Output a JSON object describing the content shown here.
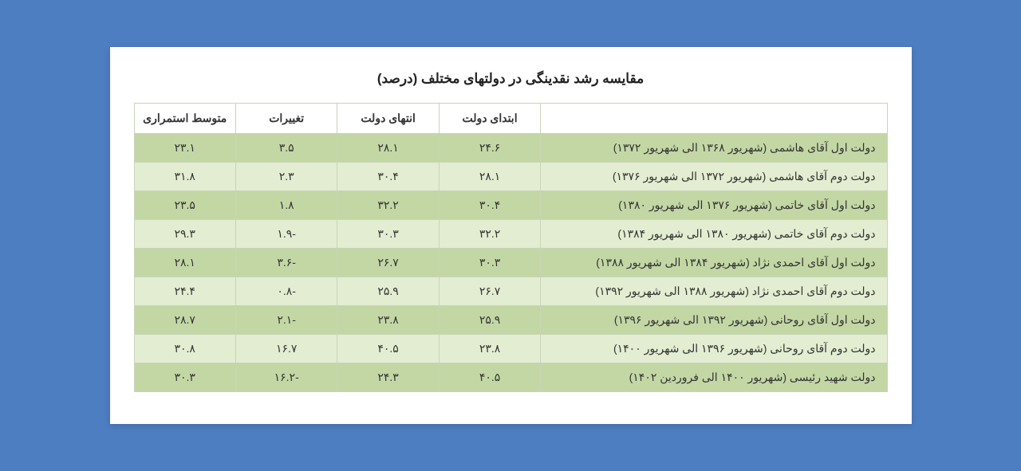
{
  "title": "مقایسه رشد نقدینگی در دولتهای مختلف (درصد)",
  "columns": {
    "government": "",
    "start": "ابتدای دولت",
    "end": "انتهای دولت",
    "changes": "تغییرات",
    "average": "متوسط استمراری"
  },
  "rows": [
    {
      "gov": "دولت اول آقای هاشمی (شهریور ۱۳۶۸ الی شهریور ۱۳۷۲)",
      "start": "۲۴.۶",
      "end": "۲۸.۱",
      "changes": "۳.۵",
      "avg": "۲۳.۱"
    },
    {
      "gov": "دولت دوم آقای هاشمی (شهریور ۱۳۷۲ الی شهریور ۱۳۷۶)",
      "start": "۲۸.۱",
      "end": "۳۰.۴",
      "changes": "۲.۳",
      "avg": "۳۱.۸"
    },
    {
      "gov": "دولت اول آقای خاتمی (شهریور ۱۳۷۶ الی شهریور ۱۳۸۰)",
      "start": "۳۰.۴",
      "end": "۳۲.۲",
      "changes": "۱.۸",
      "avg": "۲۳.۵"
    },
    {
      "gov": "دولت دوم آقای خاتمی (شهریور ۱۳۸۰ الی شهریور ۱۳۸۴)",
      "start": "۳۲.۲",
      "end": "۳۰.۳",
      "changes": "-۱.۹",
      "avg": "۲۹.۳"
    },
    {
      "gov": "دولت اول آقای احمدی نژاد (شهریور ۱۳۸۴ الی شهریور ۱۳۸۸)",
      "start": "۳۰.۳",
      "end": "۲۶.۷",
      "changes": "-۳.۶",
      "avg": "۲۸.۱"
    },
    {
      "gov": "دولت دوم آقای احمدی نژاد (شهریور ۱۳۸۸ الی شهریور ۱۳۹۲)",
      "start": "۲۶.۷",
      "end": "۲۵.۹",
      "changes": "-۰.۸",
      "avg": "۲۴.۴"
    },
    {
      "gov": "دولت اول آقای روحانی (شهریور ۱۳۹۲ الی شهریور ۱۳۹۶)",
      "start": "۲۵.۹",
      "end": "۲۳.۸",
      "changes": "-۲.۱",
      "avg": "۲۸.۷"
    },
    {
      "gov": "دولت دوم آقای روحانی (شهریور ۱۳۹۶ الی شهریور ۱۴۰۰)",
      "start": "۲۳.۸",
      "end": "۴۰.۵",
      "changes": "۱۶.۷",
      "avg": "۳۰.۸"
    },
    {
      "gov": "دولت شهید رئیسی (شهریور ۱۴۰۰ الی فروردین ۱۴۰۲)",
      "start": "۴۰.۵",
      "end": "۲۴.۳",
      "changes": "-۱۶.۲",
      "avg": "۳۰.۳"
    }
  ],
  "colors": {
    "page_bg": "#4d7ec2",
    "card_bg": "#ffffff",
    "row_odd": "#c3d7a5",
    "row_even": "#e3edd1",
    "border": "#c8d4b8",
    "text": "#333333"
  },
  "table_style": {
    "title_fontsize": 17,
    "cell_fontsize": 14,
    "gov_col_width_pct": 46,
    "num_col_width_pct": 13.5
  }
}
